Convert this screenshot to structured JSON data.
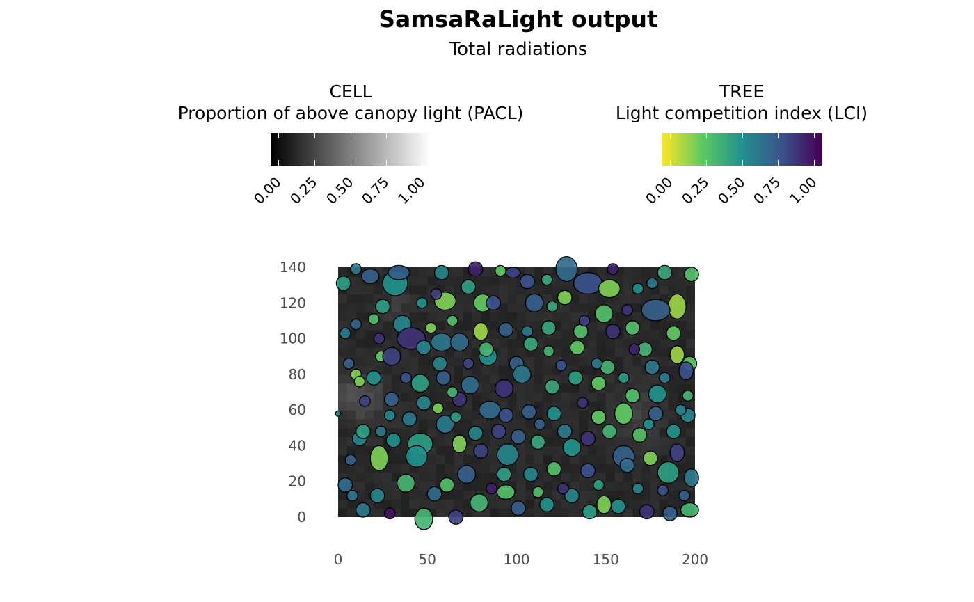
{
  "chart_data": {
    "type": "scatter",
    "title": "SamsaRaLight output",
    "subtitle": "Total radiations",
    "x_ticks": [
      0,
      50,
      100,
      150,
      200
    ],
    "y_ticks": [
      0,
      20,
      40,
      60,
      80,
      100,
      120,
      140
    ],
    "xlim": [
      0,
      200
    ],
    "ylim": [
      0,
      140
    ],
    "legends": {
      "cell": {
        "title_line1": "CELL",
        "title_line2": "Proportion of above canopy light (PACL)",
        "ticks": [
          "0.00",
          "0.25",
          "0.50",
          "0.75",
          "1.00"
        ],
        "colors": [
          "#000000",
          "#ffffff"
        ]
      },
      "tree": {
        "title_line1": "TREE",
        "title_line2": "Light competition index (LCI)",
        "ticks": [
          "0.00",
          "0.25",
          "0.50",
          "0.75",
          "1.00"
        ],
        "colors": [
          "#fde725",
          "#5ec962",
          "#21918c",
          "#3b528b",
          "#440154"
        ]
      }
    },
    "trees": [
      [
        32,
        131,
        7,
        7,
        0.5
      ],
      [
        18,
        135,
        5,
        4,
        0.7
      ],
      [
        3,
        131,
        4,
        4,
        0.45
      ],
      [
        10,
        139,
        3,
        3,
        0.6
      ],
      [
        34,
        137,
        6,
        4,
        0.7
      ],
      [
        58,
        137,
        4,
        4,
        0.55
      ],
      [
        77,
        139,
        4,
        4,
        0.9
      ],
      [
        91,
        138,
        3,
        3,
        0.25
      ],
      [
        98,
        137,
        4,
        3,
        0.8
      ],
      [
        128,
        139,
        6,
        7,
        0.65
      ],
      [
        140,
        131,
        8,
        6,
        0.75
      ],
      [
        154,
        139,
        3,
        3,
        0.9
      ],
      [
        183,
        137,
        4,
        4,
        0.4
      ],
      [
        198,
        136,
        4,
        4,
        0.3
      ],
      [
        152,
        128,
        6,
        5,
        0.2
      ],
      [
        60,
        121,
        6,
        5,
        0.2
      ],
      [
        81,
        120,
        5,
        5,
        0.25
      ],
      [
        127,
        123,
        4,
        4,
        0.2
      ],
      [
        190,
        118,
        5,
        7,
        0.15
      ],
      [
        178,
        116,
        8,
        6,
        0.7
      ],
      [
        149,
        114,
        5,
        5,
        0.3
      ],
      [
        20,
        111,
        3,
        3,
        0.3
      ],
      [
        36,
        108,
        5,
        5,
        0.55
      ],
      [
        10,
        108,
        3,
        3,
        0.7
      ],
      [
        4,
        103,
        3,
        3,
        0.6
      ],
      [
        41,
        100,
        8,
        6,
        0.85
      ],
      [
        58,
        98,
        6,
        5,
        0.6
      ],
      [
        80,
        104,
        4,
        5,
        0.15
      ],
      [
        94,
        105,
        4,
        4,
        0.7
      ],
      [
        106,
        104,
        3,
        3,
        0.6
      ],
      [
        118,
        106,
        4,
        4,
        0.4
      ],
      [
        136,
        104,
        4,
        4,
        0.3
      ],
      [
        154,
        104,
        4,
        4,
        0.85
      ],
      [
        165,
        106,
        4,
        4,
        0.3
      ],
      [
        188,
        103,
        4,
        4,
        0.25
      ],
      [
        172,
        94,
        4,
        4,
        0.35
      ],
      [
        190,
        91,
        4,
        5,
        0.15
      ],
      [
        197,
        86,
        4,
        4,
        0.25
      ],
      [
        24,
        90,
        3,
        3,
        0.25
      ],
      [
        30,
        90,
        5,
        5,
        0.8
      ],
      [
        48,
        95,
        4,
        4,
        0.55
      ],
      [
        68,
        98,
        5,
        5,
        0.65
      ],
      [
        84,
        90,
        5,
        5,
        0.5
      ],
      [
        100,
        86,
        4,
        4,
        0.7
      ],
      [
        108,
        97,
        4,
        4,
        0.4
      ],
      [
        134,
        95,
        4,
        4,
        0.25
      ],
      [
        151,
        84,
        4,
        4,
        0.35
      ],
      [
        176,
        84,
        4,
        4,
        0.6
      ],
      [
        195,
        82,
        4,
        5,
        0.75
      ],
      [
        10,
        80,
        3,
        3,
        0.2
      ],
      [
        12,
        76,
        3,
        3,
        0.2
      ],
      [
        20,
        78,
        4,
        4,
        0.5
      ],
      [
        46,
        75,
        5,
        5,
        0.45
      ],
      [
        59,
        78,
        4,
        4,
        0.7
      ],
      [
        74,
        74,
        5,
        5,
        0.65
      ],
      [
        93,
        72,
        5,
        5,
        0.85
      ],
      [
        103,
        80,
        5,
        5,
        0.6
      ],
      [
        120,
        73,
        4,
        4,
        0.4
      ],
      [
        133,
        78,
        4,
        4,
        0.45
      ],
      [
        146,
        75,
        4,
        4,
        0.25
      ],
      [
        165,
        68,
        4,
        4,
        0.3
      ],
      [
        179,
        69,
        5,
        5,
        0.5
      ],
      [
        196,
        68,
        3,
        3,
        0.35
      ],
      [
        0,
        58,
        1.5,
        1.5,
        0.5
      ],
      [
        48,
        64,
        4,
        4,
        0.55
      ],
      [
        56,
        61,
        3,
        3,
        0.2
      ],
      [
        68,
        66,
        4,
        4,
        0.85
      ],
      [
        85,
        60,
        6,
        5,
        0.65
      ],
      [
        94,
        57,
        4,
        4,
        0.75
      ],
      [
        107,
        59,
        4,
        4,
        0.7
      ],
      [
        121,
        58,
        4,
        4,
        0.5
      ],
      [
        146,
        56,
        4,
        4,
        0.25
      ],
      [
        160,
        58,
        5,
        6,
        0.25
      ],
      [
        178,
        58,
        4,
        4,
        0.7
      ],
      [
        196,
        57,
        4,
        4,
        0.55
      ],
      [
        12,
        44,
        4,
        4,
        0.55
      ],
      [
        24,
        48,
        3,
        3,
        0.6
      ],
      [
        31,
        43,
        4,
        4,
        0.5
      ],
      [
        46,
        41,
        7,
        6,
        0.45
      ],
      [
        68,
        41,
        4,
        5,
        0.2
      ],
      [
        80,
        37,
        4,
        4,
        0.8
      ],
      [
        95,
        35,
        6,
        6,
        0.55
      ],
      [
        112,
        42,
        4,
        4,
        0.4
      ],
      [
        131,
        39,
        5,
        5,
        0.5
      ],
      [
        160,
        34,
        6,
        6,
        0.7
      ],
      [
        175,
        33,
        4,
        4,
        0.2
      ],
      [
        190,
        36,
        4,
        5,
        0.8
      ],
      [
        4,
        18,
        4,
        4,
        0.65
      ],
      [
        7,
        32,
        3,
        3,
        0.7
      ],
      [
        23,
        33,
        5,
        7,
        0.2
      ],
      [
        44,
        34,
        6,
        6,
        0.5
      ],
      [
        38,
        19,
        5,
        5,
        0.35
      ],
      [
        61,
        18,
        4,
        4,
        0.3
      ],
      [
        72,
        24,
        5,
        5,
        0.7
      ],
      [
        93,
        24,
        4,
        4,
        0.45
      ],
      [
        108,
        24,
        4,
        4,
        0.55
      ],
      [
        121,
        27,
        4,
        4,
        0.3
      ],
      [
        140,
        26,
        4,
        4,
        0.75
      ],
      [
        162,
        29,
        4,
        4,
        0.65
      ],
      [
        185,
        25,
        6,
        6,
        0.45
      ],
      [
        198,
        22,
        4,
        5,
        0.6
      ],
      [
        14,
        4,
        4,
        4,
        0.6
      ],
      [
        29,
        2,
        3,
        3,
        0.95
      ],
      [
        48,
        -1,
        5,
        6,
        0.35
      ],
      [
        66,
        0,
        4,
        4,
        0.8
      ],
      [
        79,
        8,
        5,
        5,
        0.35
      ],
      [
        94,
        14,
        5,
        4,
        0.3
      ],
      [
        101,
        5,
        4,
        4,
        0.7
      ],
      [
        117,
        7,
        4,
        4,
        0.5
      ],
      [
        131,
        12,
        4,
        4,
        0.55
      ],
      [
        141,
        3,
        4,
        4,
        0.45
      ],
      [
        149,
        7,
        4,
        5,
        0.2
      ],
      [
        157,
        6,
        4,
        4,
        0.5
      ],
      [
        173,
        3,
        4,
        4,
        0.85
      ],
      [
        186,
        2,
        4,
        4,
        0.7
      ],
      [
        197,
        4,
        5,
        4,
        0.35
      ],
      [
        60,
        52,
        5,
        5,
        0.6
      ],
      [
        77,
        47,
        4,
        4,
        0.55
      ],
      [
        90,
        48,
        4,
        4,
        0.8
      ],
      [
        101,
        45,
        4,
        4,
        0.7
      ],
      [
        127,
        48,
        4,
        4,
        0.6
      ],
      [
        140,
        44,
        4,
        4,
        0.85
      ],
      [
        152,
        48,
        4,
        4,
        0.35
      ],
      [
        169,
        46,
        4,
        4,
        0.3
      ],
      [
        188,
        48,
        4,
        4,
        0.5
      ],
      [
        40,
        55,
        4,
        4,
        0.6
      ],
      [
        14,
        48,
        4,
        4,
        0.45
      ],
      [
        30,
        66,
        4,
        4,
        0.7
      ],
      [
        38,
        78,
        3,
        3,
        0.75
      ],
      [
        57,
        86,
        4,
        4,
        0.55
      ],
      [
        64,
        70,
        3,
        3,
        0.35
      ],
      [
        73,
        86,
        3,
        3,
        0.8
      ],
      [
        87,
        120,
        4,
        4,
        0.75
      ],
      [
        110,
        120,
        5,
        5,
        0.7
      ],
      [
        120,
        118,
        3,
        3,
        0.4
      ],
      [
        168,
        128,
        3,
        3,
        0.5
      ],
      [
        176,
        131,
        3,
        3,
        0.6
      ],
      [
        64,
        110,
        3,
        3,
        0.3
      ],
      [
        55,
        125,
        3,
        3,
        0.8
      ],
      [
        73,
        129,
        4,
        4,
        0.45
      ],
      [
        106,
        132,
        4,
        4,
        0.75
      ],
      [
        117,
        133,
        3,
        3,
        0.4
      ],
      [
        138,
        110,
        3,
        3,
        0.8
      ],
      [
        162,
        116,
        3,
        3,
        0.85
      ],
      [
        52,
        106,
        3,
        3,
        0.2
      ],
      [
        25,
        118,
        4,
        4,
        0.45
      ],
      [
        23,
        100,
        3,
        3,
        0.85
      ],
      [
        47,
        120,
        3,
        3,
        0.5
      ],
      [
        83,
        94,
        4,
        4,
        0.35
      ],
      [
        118,
        93,
        3,
        3,
        0.35
      ],
      [
        125,
        85,
        3,
        3,
        0.75
      ],
      [
        145,
        86,
        3,
        3,
        0.6
      ],
      [
        166,
        94,
        3,
        3,
        0.9
      ],
      [
        183,
        78,
        3,
        3,
        0.6
      ],
      [
        160,
        78,
        3,
        3,
        0.45
      ],
      [
        6,
        86,
        3,
        3,
        0.7
      ],
      [
        15,
        65,
        3,
        3,
        0.8
      ],
      [
        29,
        57,
        3,
        3,
        0.55
      ],
      [
        66,
        56,
        3,
        3,
        0.45
      ],
      [
        113,
        52,
        3,
        3,
        0.7
      ],
      [
        137,
        64,
        3,
        3,
        0.85
      ],
      [
        174,
        52,
        3,
        3,
        0.5
      ],
      [
        192,
        60,
        3,
        3,
        0.55
      ],
      [
        8,
        12,
        3,
        3,
        0.6
      ],
      [
        22,
        12,
        4,
        4,
        0.55
      ],
      [
        54,
        13,
        4,
        4,
        0.65
      ],
      [
        86,
        16,
        3,
        3,
        0.9
      ],
      [
        112,
        14,
        3,
        3,
        0.3
      ],
      [
        126,
        16,
        3,
        3,
        0.85
      ],
      [
        146,
        18,
        3,
        3,
        0.45
      ],
      [
        168,
        16,
        3,
        3,
        0.55
      ],
      [
        182,
        15,
        3,
        3,
        0.75
      ],
      [
        194,
        12,
        3,
        3,
        0.7
      ]
    ]
  }
}
